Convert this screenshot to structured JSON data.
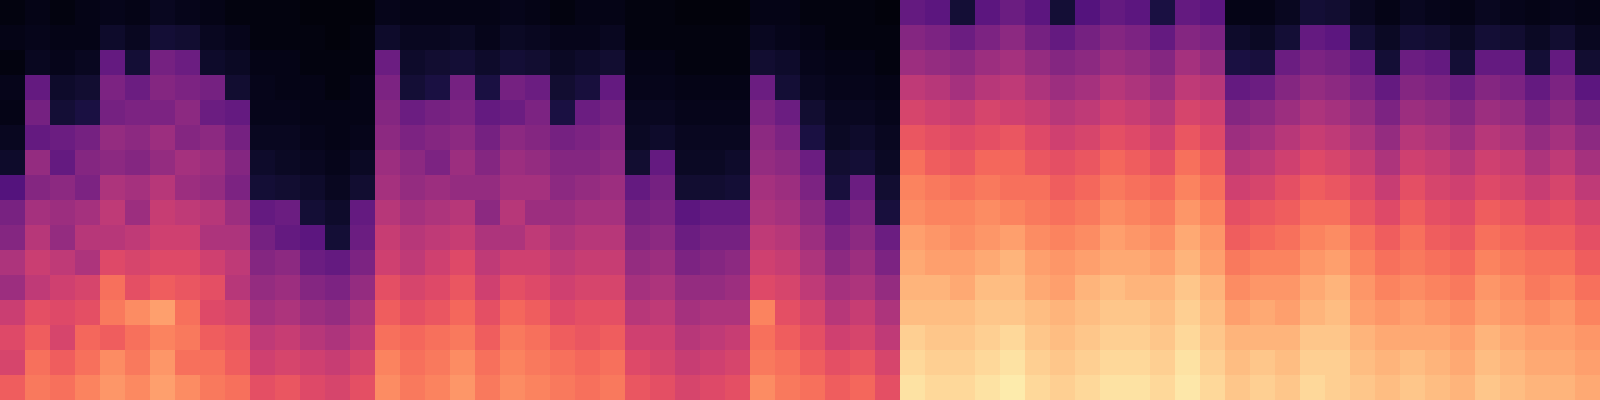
{
  "chart_data": {
    "type": "heatmap",
    "color": "magma",
    "tick_labels": false,
    "zlim": [
      0,
      100
    ],
    "cells": [
      [
        3,
        4,
        3,
        5,
        4,
        6,
        8,
        26,
        35,
        38,
        48,
        44,
        55,
        60,
        58,
        66
      ],
      [
        4,
        5,
        6,
        30,
        34,
        30,
        42,
        38,
        46,
        50,
        55,
        52,
        62,
        66,
        70,
        72
      ],
      [
        3,
        4,
        5,
        8,
        10,
        32,
        30,
        40,
        44,
        42,
        52,
        56,
        60,
        58,
        66,
        70
      ],
      [
        4,
        4,
        6,
        9,
        12,
        34,
        38,
        36,
        46,
        50,
        48,
        58,
        62,
        68,
        70,
        74
      ],
      [
        5,
        8,
        30,
        36,
        34,
        42,
        40,
        48,
        52,
        50,
        60,
        70,
        72,
        66,
        76,
        78
      ],
      [
        4,
        6,
        10,
        32,
        36,
        40,
        38,
        46,
        44,
        52,
        58,
        62,
        76,
        70,
        72,
        75
      ],
      [
        6,
        10,
        34,
        38,
        36,
        44,
        42,
        50,
        54,
        56,
        60,
        66,
        80,
        74,
        78,
        80
      ],
      [
        5,
        9,
        32,
        36,
        40,
        38,
        46,
        44,
        52,
        56,
        60,
        64,
        70,
        72,
        70,
        76
      ],
      [
        4,
        6,
        8,
        34,
        32,
        40,
        44,
        42,
        50,
        48,
        56,
        62,
        60,
        66,
        70,
        72
      ],
      [
        3,
        5,
        7,
        9,
        30,
        34,
        38,
        36,
        44,
        48,
        52,
        50,
        58,
        64,
        66,
        70
      ],
      [
        3,
        3,
        4,
        5,
        5,
        6,
        8,
        10,
        30,
        34,
        38,
        42,
        46,
        52,
        56,
        62
      ],
      [
        3,
        3,
        4,
        4,
        5,
        6,
        7,
        9,
        32,
        30,
        40,
        44,
        48,
        54,
        58,
        64
      ],
      [
        2,
        3,
        3,
        4,
        4,
        5,
        6,
        8,
        10,
        28,
        32,
        38,
        44,
        50,
        56,
        60
      ],
      [
        2,
        2,
        3,
        3,
        4,
        4,
        5,
        6,
        8,
        10,
        30,
        36,
        42,
        48,
        54,
        58
      ],
      [
        2,
        3,
        3,
        4,
        4,
        5,
        7,
        9,
        30,
        32,
        36,
        42,
        48,
        52,
        58,
        62
      ],
      [
        5,
        8,
        32,
        36,
        38,
        40,
        44,
        46,
        50,
        54,
        56,
        62,
        66,
        70,
        74,
        76
      ],
      [
        4,
        6,
        8,
        10,
        32,
        36,
        40,
        42,
        46,
        50,
        52,
        58,
        62,
        68,
        70,
        72
      ],
      [
        4,
        6,
        9,
        12,
        34,
        38,
        36,
        44,
        48,
        52,
        56,
        60,
        64,
        70,
        72,
        74
      ],
      [
        4,
        7,
        10,
        34,
        36,
        40,
        44,
        42,
        50,
        54,
        60,
        64,
        68,
        72,
        76,
        78
      ],
      [
        4,
        5,
        8,
        12,
        30,
        34,
        38,
        42,
        40,
        48,
        52,
        56,
        62,
        66,
        70,
        72
      ],
      [
        5,
        7,
        10,
        34,
        32,
        40,
        44,
        46,
        50,
        48,
        56,
        62,
        68,
        72,
        74,
        76
      ],
      [
        4,
        6,
        9,
        32,
        36,
        38,
        42,
        46,
        44,
        52,
        56,
        60,
        66,
        70,
        72,
        74
      ],
      [
        3,
        5,
        7,
        9,
        12,
        34,
        38,
        40,
        44,
        48,
        52,
        56,
        60,
        66,
        70,
        72
      ],
      [
        4,
        5,
        8,
        11,
        32,
        36,
        38,
        42,
        46,
        50,
        54,
        58,
        62,
        64,
        68,
        70
      ],
      [
        4,
        6,
        9,
        30,
        34,
        38,
        40,
        44,
        46,
        50,
        54,
        58,
        62,
        66,
        70,
        72
      ],
      [
        3,
        3,
        4,
        5,
        6,
        7,
        9,
        30,
        34,
        38,
        42,
        46,
        50,
        56,
        60,
        64
      ],
      [
        3,
        3,
        4,
        5,
        6,
        8,
        30,
        34,
        36,
        40,
        44,
        48,
        52,
        56,
        58,
        62
      ],
      [
        2,
        3,
        3,
        4,
        5,
        6,
        7,
        9,
        28,
        32,
        36,
        42,
        46,
        50,
        54,
        58
      ],
      [
        2,
        3,
        3,
        4,
        5,
        6,
        7,
        9,
        30,
        34,
        38,
        42,
        48,
        52,
        56,
        60
      ],
      [
        2,
        3,
        3,
        4,
        5,
        6,
        8,
        10,
        30,
        34,
        40,
        44,
        48,
        54,
        58,
        62
      ],
      [
        4,
        6,
        9,
        32,
        36,
        40,
        42,
        46,
        48,
        52,
        56,
        60,
        74,
        70,
        72,
        76
      ],
      [
        4,
        5,
        8,
        10,
        32,
        36,
        40,
        44,
        46,
        50,
        54,
        58,
        62,
        66,
        70,
        72
      ],
      [
        3,
        4,
        5,
        6,
        9,
        12,
        32,
        36,
        40,
        44,
        48,
        52,
        58,
        62,
        66,
        70
      ],
      [
        3,
        3,
        4,
        5,
        6,
        7,
        9,
        11,
        32,
        36,
        40,
        46,
        50,
        56,
        62,
        66
      ],
      [
        3,
        3,
        4,
        5,
        6,
        8,
        10,
        32,
        36,
        40,
        44,
        48,
        54,
        58,
        64,
        68
      ],
      [
        2,
        3,
        3,
        4,
        5,
        6,
        7,
        9,
        11,
        32,
        36,
        42,
        48,
        52,
        58,
        62
      ],
      [
        30,
        38,
        44,
        52,
        58,
        64,
        70,
        74,
        76,
        80,
        82,
        84,
        86,
        90,
        92,
        94
      ],
      [
        28,
        36,
        42,
        50,
        56,
        62,
        66,
        72,
        74,
        78,
        80,
        84,
        86,
        88,
        90,
        92
      ],
      [
        10,
        32,
        40,
        46,
        54,
        60,
        64,
        70,
        74,
        76,
        80,
        82,
        86,
        88,
        90,
        92
      ],
      [
        28,
        36,
        44,
        50,
        58,
        62,
        68,
        72,
        76,
        78,
        82,
        86,
        88,
        90,
        92,
        94
      ],
      [
        32,
        40,
        46,
        52,
        56,
        64,
        68,
        70,
        74,
        80,
        84,
        86,
        88,
        92,
        94,
        96
      ],
      [
        28,
        34,
        42,
        48,
        54,
        60,
        64,
        70,
        72,
        76,
        80,
        82,
        86,
        88,
        90,
        92
      ],
      [
        10,
        30,
        38,
        44,
        50,
        56,
        62,
        66,
        70,
        74,
        78,
        80,
        84,
        86,
        88,
        90
      ],
      [
        26,
        34,
        40,
        46,
        52,
        58,
        64,
        68,
        72,
        76,
        80,
        84,
        86,
        88,
        90,
        92
      ],
      [
        30,
        38,
        44,
        50,
        56,
        62,
        68,
        72,
        76,
        80,
        82,
        86,
        88,
        90,
        92,
        94
      ],
      [
        28,
        36,
        42,
        48,
        54,
        60,
        66,
        70,
        74,
        78,
        82,
        84,
        88,
        90,
        92,
        94
      ],
      [
        12,
        30,
        38,
        44,
        50,
        56,
        62,
        68,
        72,
        76,
        80,
        84,
        86,
        88,
        90,
        92
      ],
      [
        30,
        38,
        46,
        52,
        58,
        64,
        70,
        74,
        78,
        82,
        84,
        88,
        90,
        92,
        94,
        95
      ],
      [
        28,
        36,
        42,
        50,
        56,
        60,
        66,
        70,
        74,
        78,
        80,
        84,
        86,
        88,
        90,
        92
      ],
      [
        4,
        8,
        12,
        30,
        38,
        44,
        50,
        56,
        62,
        66,
        72,
        76,
        80,
        84,
        86,
        88
      ],
      [
        4,
        7,
        11,
        32,
        40,
        46,
        52,
        58,
        64,
        68,
        74,
        78,
        82,
        84,
        88,
        90
      ],
      [
        6,
        10,
        32,
        38,
        44,
        50,
        56,
        62,
        66,
        70,
        74,
        78,
        80,
        84,
        86,
        88
      ],
      [
        10,
        30,
        36,
        42,
        48,
        54,
        60,
        66,
        70,
        74,
        78,
        82,
        84,
        88,
        90,
        92
      ],
      [
        9,
        28,
        34,
        40,
        46,
        52,
        58,
        64,
        70,
        76,
        80,
        84,
        86,
        88,
        90,
        90
      ],
      [
        6,
        10,
        30,
        36,
        42,
        48,
        54,
        60,
        64,
        70,
        74,
        78,
        80,
        84,
        86,
        88
      ],
      [
        4,
        7,
        10,
        30,
        36,
        42,
        48,
        54,
        60,
        66,
        70,
        74,
        78,
        82,
        84,
        86
      ],
      [
        6,
        10,
        32,
        38,
        44,
        50,
        56,
        62,
        66,
        70,
        72,
        76,
        80,
        82,
        86,
        88
      ],
      [
        5,
        9,
        30,
        36,
        42,
        48,
        54,
        58,
        62,
        66,
        70,
        74,
        78,
        82,
        84,
        86
      ],
      [
        4,
        7,
        10,
        32,
        38,
        44,
        50,
        56,
        60,
        64,
        68,
        72,
        76,
        80,
        82,
        84
      ],
      [
        6,
        10,
        30,
        38,
        44,
        50,
        56,
        60,
        66,
        70,
        74,
        78,
        80,
        84,
        86,
        88
      ],
      [
        5,
        9,
        30,
        36,
        42,
        48,
        54,
        58,
        64,
        68,
        72,
        76,
        78,
        82,
        84,
        86
      ],
      [
        4,
        7,
        10,
        30,
        36,
        42,
        48,
        54,
        60,
        66,
        70,
        72,
        76,
        80,
        82,
        84
      ],
      [
        5,
        9,
        30,
        36,
        40,
        46,
        52,
        58,
        62,
        66,
        70,
        74,
        78,
        80,
        82,
        84
      ],
      [
        4,
        6,
        9,
        28,
        34,
        40,
        46,
        52,
        58,
        62,
        66,
        70,
        74,
        78,
        80,
        82
      ]
    ]
  }
}
